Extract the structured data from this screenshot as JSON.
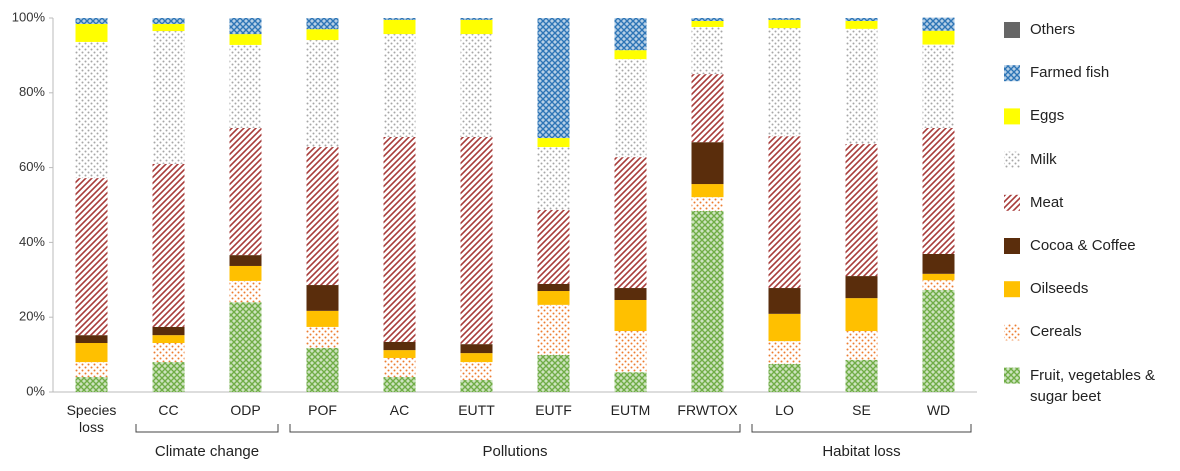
{
  "chart_data": {
    "type": "stacked-bar-100",
    "categories": [
      "Species loss",
      "CC",
      "ODP",
      "POF",
      "AC",
      "EUTT",
      "EUTF",
      "EUTM",
      "FRWTOX",
      "LO",
      "SE",
      "WD"
    ],
    "groups": [
      {
        "label": "Climate change",
        "members": [
          "CC",
          "ODP"
        ]
      },
      {
        "label": "Pollutions",
        "members": [
          "POF",
          "AC",
          "EUTT",
          "EUTF",
          "EUTM",
          "FRWTOX"
        ]
      },
      {
        "label": "Habitat loss",
        "members": [
          "LO",
          "SE",
          "WD"
        ]
      }
    ],
    "series": [
      {
        "name": "Fruit, vegetables & sugar beet",
        "color": "#70ad47",
        "pattern": "cross",
        "values": [
          4,
          8,
          24,
          11.8,
          4,
          3.2,
          9.9,
          5.3,
          48.4,
          7.5,
          8.6,
          27.3
        ]
      },
      {
        "name": "Cereals",
        "color": "#ed7d31",
        "pattern": "dots",
        "values": [
          4,
          5.1,
          5.7,
          5.6,
          5.1,
          4.8,
          13.4,
          11,
          3.7,
          6.1,
          7.7,
          2.6
        ]
      },
      {
        "name": "Oilseeds",
        "color": "#ffc000",
        "pattern": "solid",
        "values": [
          5.1,
          2.1,
          4,
          4.3,
          2.1,
          2.4,
          3.7,
          8.3,
          3.5,
          7.3,
          8.8,
          1.7
        ]
      },
      {
        "name": "Cocoa & Coffee",
        "color": "#5a2d0c",
        "pattern": "solid",
        "values": [
          2.1,
          2.2,
          2.9,
          6.9,
          2.2,
          2.4,
          1.9,
          3.2,
          11.2,
          6.9,
          5.9,
          5.3
        ]
      },
      {
        "name": "Meat",
        "color": "#a83c3a",
        "pattern": "stripes",
        "values": [
          42,
          43.6,
          34,
          36.9,
          54.8,
          55.4,
          19.8,
          35,
          18.2,
          40.6,
          35.3,
          33.7
        ]
      },
      {
        "name": "Milk",
        "color": "#a6a6a6",
        "pattern": "dots",
        "values": [
          36.4,
          35.5,
          22.2,
          28.6,
          27.5,
          27.5,
          16.8,
          26.2,
          12.6,
          28.9,
          30.8,
          22.3
        ]
      },
      {
        "name": "Eggs",
        "color": "#ffff00",
        "pattern": "solid",
        "values": [
          4.8,
          1.9,
          2.9,
          2.9,
          3.8,
          3.8,
          2.4,
          2.4,
          1.6,
          2.2,
          2.1,
          3.7
        ]
      },
      {
        "name": "Farmed fish",
        "color": "#2e75b6",
        "pattern": "cross",
        "values": [
          1.6,
          1.6,
          4.3,
          3,
          0.5,
          0.5,
          32.1,
          8.6,
          0.8,
          0.5,
          0.8,
          3.5
        ]
      },
      {
        "name": "Others",
        "color": "#666666",
        "pattern": "solid",
        "values": [
          0,
          0,
          0,
          0,
          0,
          0,
          0,
          0,
          0,
          0,
          0,
          0
        ]
      }
    ],
    "ylim": [
      0,
      100
    ],
    "yticks": [
      {
        "value": 0,
        "label": "0%"
      },
      {
        "value": 20,
        "label": "20%"
      },
      {
        "value": 40,
        "label": "40%"
      },
      {
        "value": 60,
        "label": "60%"
      },
      {
        "value": 80,
        "label": "80%"
      },
      {
        "value": 100,
        "label": "100%"
      }
    ],
    "legend": "right"
  }
}
